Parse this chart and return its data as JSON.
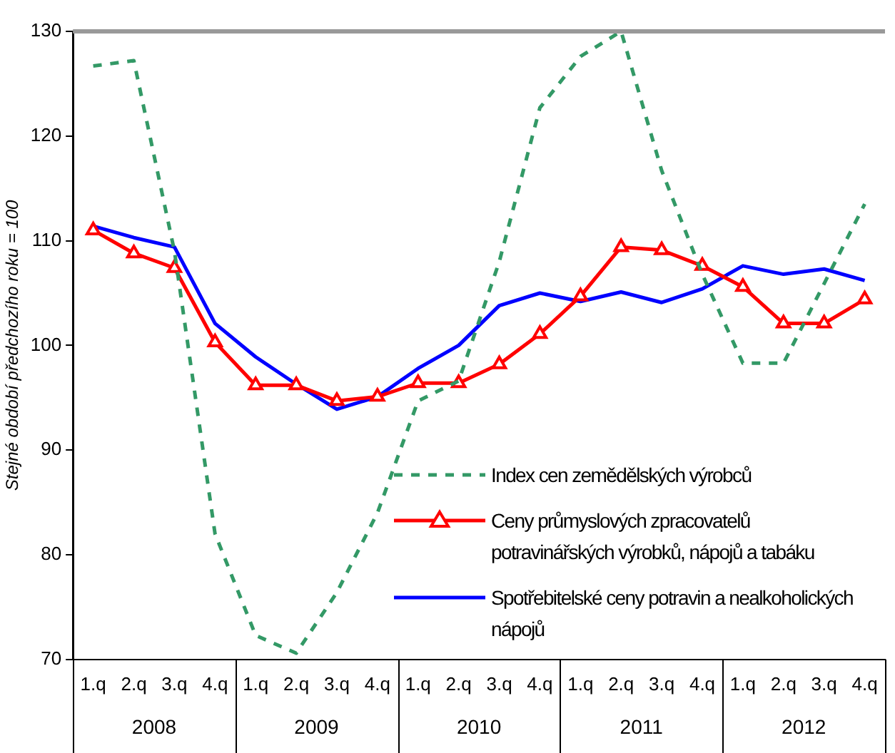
{
  "chart_data": {
    "type": "line",
    "ylabel": "Stejné období předchozího roku = 100",
    "categories": [
      "1.q",
      "2.q",
      "3.q",
      "4.q",
      "1.q",
      "2.q",
      "3.q",
      "4.q",
      "1.q",
      "2.q",
      "3.q",
      "4.q",
      "1.q",
      "2.q",
      "3.q",
      "4.q",
      "1.q",
      "2.q",
      "3.q",
      "4.q"
    ],
    "annotations": [
      "2008",
      "2009",
      "2010",
      "2011",
      "2012"
    ],
    "ylim": [
      70,
      130
    ],
    "yticks": [
      70,
      80,
      90,
      100,
      110,
      120,
      130
    ],
    "grid": false,
    "legend": "bottom right",
    "series": [
      {
        "name": "Index cen zemědělských výrobců",
        "color": "#339966",
        "line_style": "dashed",
        "marker": "none",
        "values": [
          126.7,
          127.2,
          109,
          82,
          72.3,
          70.6,
          76.4,
          84,
          94.7,
          96.6,
          108,
          122.7,
          127.6,
          130,
          116.7,
          106.8,
          98.3,
          98.3,
          105.9,
          113.5
        ]
      },
      {
        "name": "Ceny průmyslových zpracovatelů potravinářských výrobků, nápojů a tabáku",
        "color": "#ff0000",
        "line_style": "solid",
        "marker": "triangle",
        "values": [
          111,
          108.8,
          107.4,
          100.3,
          96.2,
          96.2,
          94.7,
          95.1,
          96.4,
          96.4,
          98.2,
          101.1,
          104.7,
          109.4,
          109.1,
          107.6,
          105.6,
          102.1,
          102.1,
          104.4
        ]
      },
      {
        "name": "Spotřebitelské ceny potravin a nealkoholických nápojů",
        "color": "#0000ff",
        "line_style": "solid",
        "marker": "none",
        "values": [
          111.4,
          110.3,
          109.4,
          102.1,
          98.9,
          96.3,
          93.9,
          95.1,
          97.8,
          100,
          103.8,
          105,
          104.2,
          105.1,
          104.1,
          105.4,
          107.6,
          106.8,
          107.3,
          106.2
        ]
      }
    ]
  }
}
